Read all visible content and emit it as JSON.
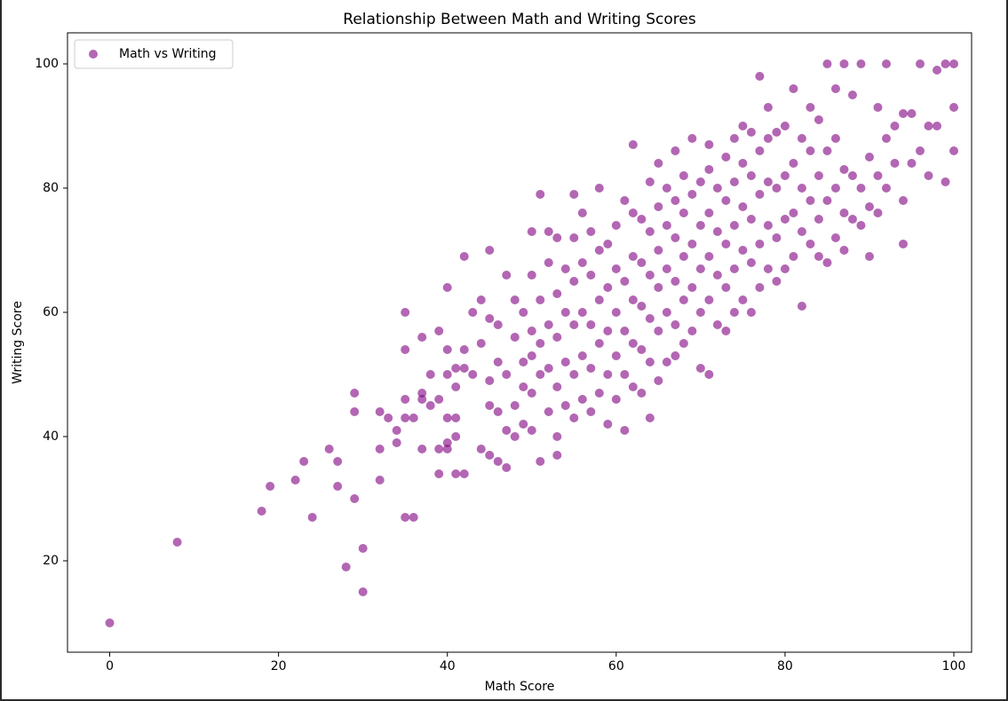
{
  "chart_data": {
    "type": "scatter",
    "title": "Relationship Between Math and Writing Scores",
    "x_label": "Math Score",
    "y_label": "Writing Score",
    "xlim": [
      -5,
      102.1
    ],
    "ylim": [
      5.5,
      104.5
    ],
    "xticks": [
      0,
      20,
      40,
      60,
      80,
      100
    ],
    "yticks": [
      20,
      40,
      60,
      80,
      100
    ],
    "legend": "upper left",
    "series": [
      {
        "name": "Math vs Writing",
        "color": "#800080",
        "x": [
          0,
          8,
          18,
          19,
          22,
          23,
          24,
          26,
          27,
          27,
          28,
          29,
          29,
          29,
          30,
          30,
          32,
          32,
          32,
          33,
          34,
          34,
          35,
          36,
          35,
          35,
          35,
          35,
          36,
          37,
          37,
          37,
          37,
          38,
          38,
          39,
          39,
          39,
          39,
          40,
          40,
          40,
          40,
          40,
          40,
          41,
          41,
          41,
          41,
          41,
          42,
          42,
          42,
          42,
          43,
          43,
          44,
          44,
          44,
          45,
          45,
          45,
          45,
          45,
          46,
          46,
          46,
          46,
          47,
          47,
          47,
          47,
          48,
          48,
          48,
          48,
          49,
          49,
          49,
          49,
          50,
          50,
          50,
          50,
          50,
          50,
          51,
          51,
          51,
          51,
          51,
          52,
          52,
          52,
          52,
          52,
          53,
          53,
          53,
          53,
          53,
          53,
          54,
          54,
          54,
          54,
          55,
          55,
          55,
          55,
          55,
          55,
          56,
          56,
          56,
          56,
          56,
          57,
          57,
          57,
          57,
          57,
          58,
          58,
          58,
          58,
          58,
          59,
          59,
          59,
          59,
          59,
          60,
          60,
          60,
          60,
          60,
          61,
          61,
          61,
          61,
          61,
          62,
          62,
          62,
          62,
          62,
          62,
          63,
          63,
          63,
          63,
          63,
          64,
          64,
          64,
          64,
          64,
          64,
          65,
          65,
          65,
          65,
          65,
          65,
          66,
          66,
          66,
          66,
          66,
          67,
          67,
          67,
          67,
          67,
          67,
          68,
          68,
          68,
          68,
          68,
          69,
          69,
          69,
          69,
          69,
          70,
          70,
          70,
          70,
          70,
          71,
          71,
          71,
          71,
          71,
          71,
          72,
          72,
          72,
          72,
          73,
          73,
          73,
          73,
          73,
          74,
          74,
          74,
          74,
          74,
          75,
          75,
          75,
          75,
          75,
          76,
          76,
          76,
          76,
          76,
          77,
          77,
          77,
          77,
          77,
          78,
          78,
          78,
          78,
          78,
          79,
          79,
          79,
          79,
          80,
          80,
          80,
          80,
          81,
          81,
          81,
          81,
          82,
          82,
          82,
          82,
          83,
          83,
          83,
          83,
          84,
          84,
          84,
          84,
          85,
          85,
          85,
          85,
          86,
          86,
          86,
          86,
          87,
          87,
          87,
          87,
          88,
          88,
          88,
          89,
          89,
          89,
          90,
          90,
          90,
          91,
          91,
          91,
          92,
          92,
          92,
          93,
          93,
          94,
          94,
          94,
          95,
          95,
          96,
          96,
          97,
          97,
          98,
          98,
          99,
          99,
          100,
          100,
          100
        ],
        "values": [
          10,
          23,
          28,
          32,
          33,
          36,
          27,
          38,
          36,
          32,
          19,
          30,
          44,
          47,
          22,
          15,
          33,
          38,
          44,
          43,
          39,
          41,
          27,
          27,
          43,
          46,
          54,
          60,
          43,
          38,
          46,
          47,
          56,
          45,
          50,
          34,
          38,
          46,
          57,
          38,
          39,
          43,
          54,
          64,
          50,
          34,
          40,
          43,
          48,
          51,
          34,
          51,
          54,
          69,
          50,
          60,
          38,
          55,
          62,
          37,
          45,
          49,
          59,
          70,
          36,
          44,
          52,
          58,
          35,
          41,
          50,
          66,
          40,
          45,
          56,
          62,
          42,
          48,
          52,
          60,
          41,
          47,
          53,
          57,
          66,
          73,
          36,
          50,
          55,
          62,
          79,
          44,
          51,
          58,
          68,
          73,
          37,
          40,
          48,
          56,
          63,
          72,
          45,
          52,
          60,
          67,
          43,
          50,
          58,
          65,
          72,
          79,
          46,
          53,
          60,
          68,
          76,
          44,
          51,
          58,
          66,
          73,
          47,
          55,
          62,
          70,
          80,
          42,
          50,
          57,
          64,
          71,
          46,
          53,
          60,
          67,
          74,
          41,
          50,
          57,
          65,
          78,
          48,
          55,
          62,
          69,
          76,
          87,
          47,
          54,
          61,
          68,
          75,
          43,
          52,
          59,
          66,
          73,
          81,
          49,
          57,
          64,
          70,
          77,
          84,
          52,
          60,
          67,
          74,
          80,
          53,
          58,
          65,
          72,
          78,
          86,
          55,
          62,
          69,
          76,
          82,
          57,
          64,
          71,
          79,
          88,
          51,
          60,
          67,
          74,
          81,
          50,
          62,
          69,
          76,
          83,
          87,
          58,
          66,
          73,
          80,
          57,
          64,
          71,
          78,
          85,
          60,
          67,
          74,
          81,
          88,
          62,
          70,
          77,
          84,
          90,
          60,
          68,
          75,
          82,
          89,
          64,
          71,
          79,
          86,
          98,
          67,
          74,
          81,
          88,
          93,
          65,
          72,
          80,
          89,
          67,
          75,
          82,
          90,
          69,
          76,
          84,
          96,
          61,
          73,
          80,
          88,
          71,
          78,
          86,
          93,
          69,
          75,
          82,
          91,
          68,
          78,
          86,
          100,
          72,
          80,
          88,
          96,
          70,
          76,
          83,
          100,
          75,
          82,
          95,
          74,
          80,
          100,
          69,
          77,
          85,
          76,
          82,
          93,
          80,
          100,
          88,
          84,
          90,
          71,
          78,
          92,
          84,
          92,
          86,
          100,
          82,
          90,
          99,
          90,
          81,
          100,
          86,
          93,
          100
        ]
      }
    ]
  }
}
